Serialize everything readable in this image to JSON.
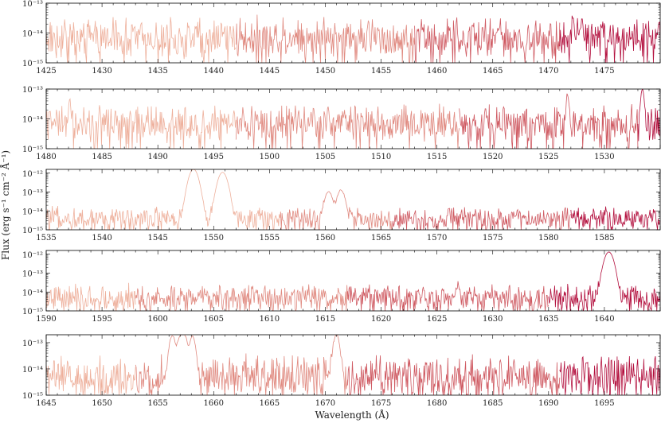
{
  "figure": {
    "ylabel": "Flux (erg s⁻¹ cm⁻² Å⁻¹)",
    "xlabel": "Wavelength (Å)"
  },
  "chart_data": [
    {
      "type": "line",
      "xlim": [
        1425,
        1480
      ],
      "ylim_log10": [
        -15,
        -13
      ],
      "yticks": [
        "10⁻¹⁵",
        "10⁻¹⁴",
        "10⁻¹³"
      ],
      "xticks": [
        1425,
        1430,
        1435,
        1440,
        1445,
        1450,
        1455,
        1460,
        1465,
        1470,
        1475
      ],
      "grid": false,
      "segments": [
        {
          "range": [
            1425,
            1442
          ],
          "color": "#eeb09c"
        },
        {
          "range": [
            1442,
            1458
          ],
          "color": "#e08a80"
        },
        {
          "range": [
            1458,
            1471
          ],
          "color": "#cf5a62"
        },
        {
          "range": [
            1471,
            1480
          ],
          "color": "#b3103e"
        }
      ],
      "continuum": 7e-15,
      "noise": 0.8,
      "features": [
        {
          "x": 1463.2,
          "peak": 1.5e-14,
          "width": 0.08
        },
        {
          "x": 1472.2,
          "peak": 3e-14,
          "width": 0.08
        },
        {
          "x": 1473.0,
          "peak": 2e-14,
          "width": 0.1
        }
      ]
    },
    {
      "type": "line",
      "xlim": [
        1480,
        1535
      ],
      "ylim_log10": [
        -15,
        -13
      ],
      "yticks": [
        "10⁻¹⁵",
        "10⁻¹⁴",
        "10⁻¹³"
      ],
      "xticks": [
        1480,
        1485,
        1490,
        1495,
        1500,
        1505,
        1510,
        1515,
        1520,
        1525,
        1530
      ],
      "grid": false,
      "segments": [
        {
          "range": [
            1480,
            1497
          ],
          "color": "#eeb09c"
        },
        {
          "range": [
            1497,
            1517
          ],
          "color": "#e08a80"
        },
        {
          "range": [
            1517,
            1533
          ],
          "color": "#cf5a62"
        },
        {
          "range": [
            1533,
            1535
          ],
          "color": "#b3103e"
        }
      ],
      "continuum": 7e-15,
      "noise": 0.7,
      "features": [
        {
          "x": 1482.1,
          "peak": 4e-14,
          "width": 0.08
        },
        {
          "x": 1526.7,
          "peak": 6e-14,
          "width": 0.1
        },
        {
          "x": 1533.4,
          "peak": 9e-14,
          "width": 0.12
        }
      ]
    },
    {
      "type": "line",
      "xlim": [
        1535,
        1590
      ],
      "ylim_log10": [
        -15,
        -11.8
      ],
      "yticks": [
        "10⁻¹⁵",
        "10⁻¹⁴",
        "10⁻¹³",
        "10⁻¹²"
      ],
      "xticks": [
        1535,
        1540,
        1545,
        1550,
        1555,
        1560,
        1565,
        1570,
        1575,
        1580,
        1585
      ],
      "grid": false,
      "segments": [
        {
          "range": [
            1535,
            1556
          ],
          "color": "#eeb09c"
        },
        {
          "range": [
            1556,
            1566
          ],
          "color": "#e08a80"
        },
        {
          "range": [
            1566,
            1582
          ],
          "color": "#cf5a62"
        },
        {
          "range": [
            1582,
            1590
          ],
          "color": "#b3103e"
        }
      ],
      "continuum": 4e-15,
      "noise": 0.7,
      "features": [
        {
          "x": 1548.2,
          "peak": 1.6e-12,
          "width": 0.3
        },
        {
          "x": 1550.8,
          "peak": 1.1e-12,
          "width": 0.3
        },
        {
          "x": 1560.3,
          "peak": 1e-13,
          "width": 0.25
        },
        {
          "x": 1561.4,
          "peak": 1.2e-13,
          "width": 0.25
        }
      ]
    },
    {
      "type": "line",
      "xlim": [
        1590,
        1645
      ],
      "ylim_log10": [
        -15,
        -11.8
      ],
      "yticks": [
        "10⁻¹⁵",
        "10⁻¹⁴",
        "10⁻¹³",
        "10⁻¹²"
      ],
      "xticks": [
        1590,
        1595,
        1600,
        1605,
        1610,
        1615,
        1620,
        1625,
        1630,
        1635,
        1640
      ],
      "grid": false,
      "segments": [
        {
          "range": [
            1590,
            1598
          ],
          "color": "#eeb09c"
        },
        {
          "range": [
            1598,
            1617
          ],
          "color": "#e08a80"
        },
        {
          "range": [
            1617,
            1635
          ],
          "color": "#cf5a62"
        },
        {
          "range": [
            1635,
            1645
          ],
          "color": "#b3103e"
        }
      ],
      "continuum": 5e-15,
      "noise": 0.8,
      "features": [
        {
          "x": 1626.9,
          "peak": 2e-14,
          "width": 0.08
        },
        {
          "x": 1640.4,
          "peak": 1.3e-12,
          "width": 0.3
        }
      ]
    },
    {
      "type": "line",
      "xlim": [
        1645,
        1700
      ],
      "ylim_log10": [
        -15,
        -12.7
      ],
      "yticks": [
        "10⁻¹⁵",
        "10⁻¹⁴",
        "10⁻¹³"
      ],
      "xticks": [
        1645,
        1650,
        1655,
        1660,
        1665,
        1670,
        1675,
        1680,
        1685,
        1690,
        1695
      ],
      "grid": false,
      "segments": [
        {
          "range": [
            1645,
            1653
          ],
          "color": "#eeb09c"
        },
        {
          "range": [
            1653,
            1672
          ],
          "color": "#e08a80"
        },
        {
          "range": [
            1672,
            1691
          ],
          "color": "#cf5a62"
        },
        {
          "range": [
            1691,
            1700
          ],
          "color": "#b3103e"
        }
      ],
      "continuum": 5e-15,
      "noise": 0.95,
      "features": [
        {
          "x": 1656.3,
          "peak": 1.8e-13,
          "width": 0.2
        },
        {
          "x": 1657.0,
          "peak": 1.6e-13,
          "width": 0.2
        },
        {
          "x": 1657.4,
          "peak": 1.7e-13,
          "width": 0.2
        },
        {
          "x": 1658.1,
          "peak": 1.7e-13,
          "width": 0.2
        },
        {
          "x": 1671.0,
          "peak": 2e-13,
          "width": 0.2
        }
      ]
    }
  ]
}
